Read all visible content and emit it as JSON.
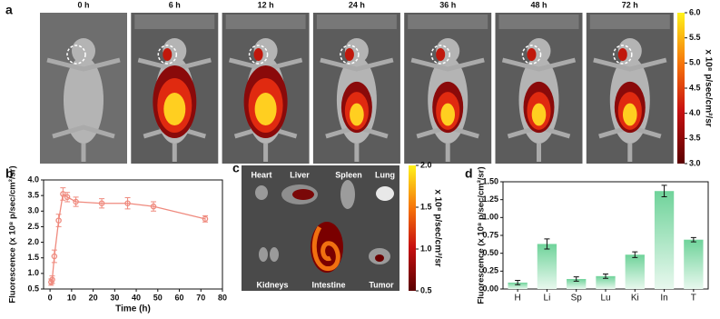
{
  "panel_a": {
    "panel": "a",
    "times": [
      "0 h",
      "6 h",
      "12 h",
      "24 h",
      "36 h",
      "48 h",
      "72 h"
    ],
    "colorbar": {
      "label": "x 10⁸ p/sec/cm²/sr",
      "lim": [
        3,
        6
      ],
      "ticks": [
        {
          "value": 3,
          "label": "3.0"
        },
        3.5,
        {
          "value": 4,
          "label": "4.0"
        },
        4.5,
        {
          "value": 5,
          "label": "5.0"
        },
        5.5,
        {
          "value": 6,
          "label": "6.0"
        }
      ]
    }
  },
  "panel_c": {
    "panel": "c",
    "organs": [
      "Heart",
      "Liver",
      "Spleen",
      "Lung",
      "Kidneys",
      "Intestine",
      "Tumor"
    ],
    "colorbar": {
      "label": "x 10⁸ p/sec/cm²/sr",
      "lim": [
        0.5,
        2
      ],
      "ticks": [
        0.5,
        {
          "value": 1,
          "label": "1.0"
        },
        1.5,
        {
          "value": 2,
          "label": "2.0"
        }
      ]
    }
  },
  "chart_data": [
    {
      "type": "line",
      "panel": "b",
      "x_label": "Time (h)",
      "y_label": "Fluorescence (x 10⁸ p/sec/cm²/sr)",
      "x": [
        0.5,
        1,
        2,
        4,
        6,
        8,
        12,
        24,
        36,
        48,
        72
      ],
      "values": [
        0.72,
        0.8,
        1.55,
        2.7,
        3.55,
        3.45,
        3.3,
        3.25,
        3.25,
        3.15,
        2.75
      ],
      "errors": [
        0.1,
        0.12,
        0.2,
        0.2,
        0.2,
        0.15,
        0.15,
        0.15,
        0.18,
        0.15,
        0.1
      ],
      "color": "#ef8a7e",
      "xlim": [
        -3,
        80
      ],
      "xticks": [
        0,
        10,
        20,
        30,
        40,
        50,
        60,
        70,
        80
      ],
      "ylim": [
        0.5,
        4
      ],
      "yticks": [
        0.5,
        {
          "value": 1,
          "label": "1.0"
        },
        1.5,
        {
          "value": 2,
          "label": "2.0"
        },
        2.5,
        {
          "value": 3,
          "label": "3.0"
        },
        3.5,
        {
          "value": 4,
          "label": "4.0"
        }
      ]
    },
    {
      "type": "bar",
      "panel": "d",
      "y_label": "Fluorescence (x 10⁸ p/sec/cm²/sr)",
      "categories": [
        "H",
        "Li",
        "Sp",
        "Lu",
        "Ki",
        "In",
        "T"
      ],
      "values": [
        0.09,
        0.63,
        0.14,
        0.18,
        0.48,
        1.37,
        0.69
      ],
      "errors": [
        0.03,
        0.07,
        0.03,
        0.03,
        0.04,
        0.08,
        0.03
      ],
      "color": "#6fd39a",
      "ylim": [
        0,
        1.5
      ],
      "yticks": [
        {
          "value": 0,
          "label": "0.00"
        },
        0.25,
        {
          "value": 0.5,
          "label": "0.50"
        },
        0.75,
        {
          "value": 1,
          "label": "1.00"
        },
        1.25,
        {
          "value": 1.5,
          "label": "1.50"
        }
      ]
    }
  ]
}
